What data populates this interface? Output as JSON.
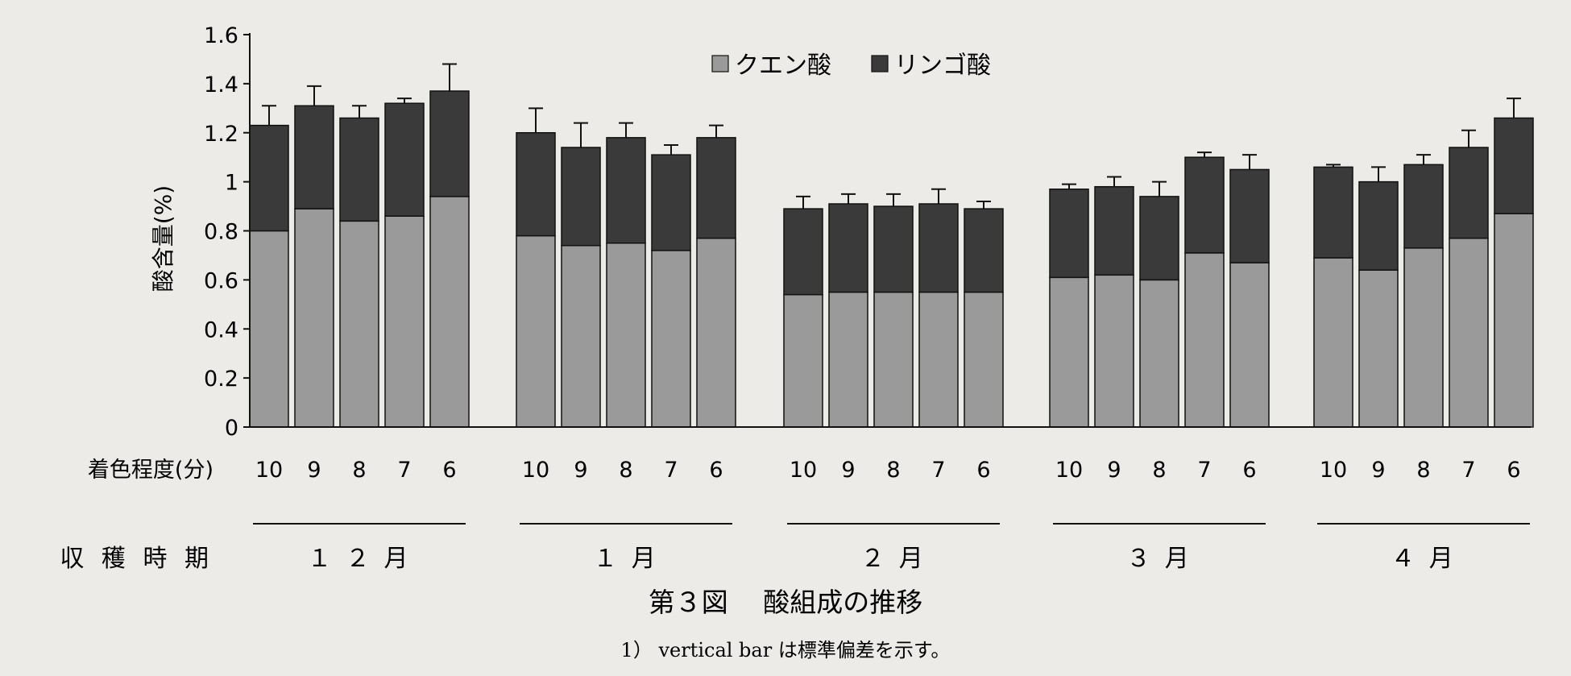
{
  "chart_data": {
    "type": "bar",
    "stacked": true,
    "ylabel": "酸含量(%)",
    "ylim": [
      0,
      1.6
    ],
    "yticks": [
      "0",
      "0.2",
      "0.4",
      "0.6",
      "0.8",
      "1",
      "1.2",
      "1.4",
      "1.6"
    ],
    "x_row_label": "着色程度(分)",
    "period_row_label": "収 穫 時 期",
    "legend": {
      "position": "top-center",
      "entries": [
        "クエン酸",
        "リンゴ酸"
      ]
    },
    "colors": {
      "citric": "#9a9a9a",
      "malic": "#3a3a3a"
    },
    "figure_title": "第３図　 酸組成の推移",
    "footnote": "1） vertical bar は標準偏差を示す。",
    "groups": [
      {
        "period": "１ ２ 月",
        "categories": [
          "10",
          "9",
          "8",
          "7",
          "6"
        ],
        "citric": [
          0.8,
          0.89,
          0.84,
          0.86,
          0.94
        ],
        "total": [
          1.23,
          1.31,
          1.26,
          1.32,
          1.37
        ],
        "error": [
          0.08,
          0.08,
          0.05,
          0.02,
          0.11
        ]
      },
      {
        "period": "１ 月",
        "categories": [
          "10",
          "9",
          "8",
          "7",
          "6"
        ],
        "citric": [
          0.78,
          0.74,
          0.75,
          0.72,
          0.77
        ],
        "total": [
          1.2,
          1.14,
          1.18,
          1.11,
          1.18
        ],
        "error": [
          0.1,
          0.1,
          0.06,
          0.04,
          0.05
        ]
      },
      {
        "period": "２ 月",
        "categories": [
          "10",
          "9",
          "8",
          "7",
          "6"
        ],
        "citric": [
          0.54,
          0.55,
          0.55,
          0.55,
          0.55
        ],
        "total": [
          0.89,
          0.91,
          0.9,
          0.91,
          0.89
        ],
        "error": [
          0.05,
          0.04,
          0.05,
          0.06,
          0.03
        ]
      },
      {
        "period": "３ 月",
        "categories": [
          "10",
          "9",
          "8",
          "7",
          "6"
        ],
        "citric": [
          0.61,
          0.62,
          0.6,
          0.71,
          0.67
        ],
        "total": [
          0.97,
          0.98,
          0.94,
          1.1,
          1.05
        ],
        "error": [
          0.02,
          0.04,
          0.06,
          0.02,
          0.06
        ]
      },
      {
        "period": "４ 月",
        "categories": [
          "10",
          "9",
          "8",
          "7",
          "6"
        ],
        "citric": [
          0.69,
          0.64,
          0.73,
          0.77,
          0.87
        ],
        "total": [
          1.06,
          1.0,
          1.07,
          1.14,
          1.26
        ],
        "error": [
          0.01,
          0.06,
          0.04,
          0.07,
          0.08
        ]
      }
    ]
  }
}
